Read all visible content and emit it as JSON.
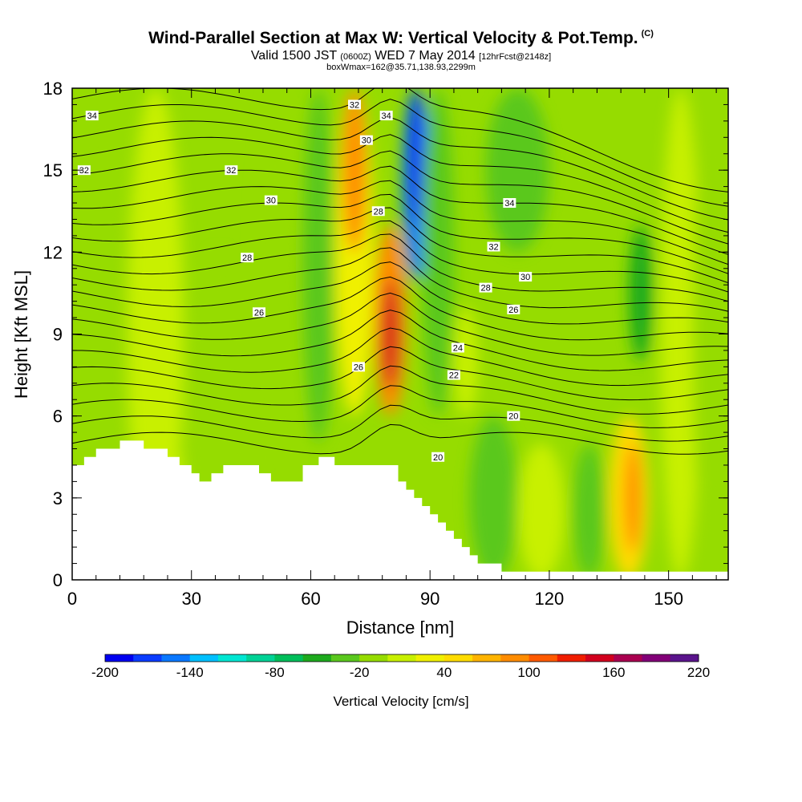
{
  "header": {
    "title": "Wind-Parallel Section at Max W: Vertical Velocity & Pot.Temp.",
    "copyright_mark": "(C)",
    "subtitle_valid": "Valid 1500 JST",
    "subtitle_utc": "(0600Z)",
    "subtitle_date": "WED 7 May 2014",
    "subtitle_fcst": "[12hrFcst@2148z]",
    "subtitle_box": "boxWmax=162@35.71,138.93,2299m"
  },
  "chart_data": {
    "type": "heatmap",
    "title": "Wind-Parallel Section at Max W: Vertical Velocity & Pot.Temp.",
    "xlabel": "Distance [nm]",
    "ylabel": "Height [Kft MSL]",
    "xlim": [
      0,
      165
    ],
    "ylim": [
      0,
      18
    ],
    "x_ticks": [
      0,
      30,
      60,
      90,
      120,
      150
    ],
    "y_ticks": [
      0,
      3,
      6,
      9,
      12,
      15,
      18
    ],
    "colorbar": {
      "label": "Vertical Velocity [cm/s]",
      "tick_labels": [
        "-200",
        "-140",
        "-80",
        "-20",
        "40",
        "100",
        "160",
        "220"
      ],
      "min": -200,
      "max": 240,
      "colors": [
        "#0000f0",
        "#0a3cff",
        "#0a78ff",
        "#00c0ff",
        "#00e6d2",
        "#00d296",
        "#00be5a",
        "#1eaa1e",
        "#5ac81e",
        "#96dc00",
        "#c8f000",
        "#f0f000",
        "#ffdc00",
        "#ffb400",
        "#ff8c00",
        "#ff5a00",
        "#f01e00",
        "#d2001e",
        "#aa0050",
        "#820078",
        "#5a148c"
      ]
    },
    "w_features": [
      {
        "kind": "updraft",
        "x_center": 80,
        "y_range": [
          6.5,
          13
        ],
        "peak_cm_s": 160
      },
      {
        "kind": "updraft",
        "x_center": 70,
        "y_range": [
          12,
          18
        ],
        "peak_cm_s": 100
      },
      {
        "kind": "downdraft",
        "x_center": 86,
        "y_range": [
          12,
          18
        ],
        "peak_cm_s": -200
      },
      {
        "kind": "downdraft",
        "x_center": 62,
        "y_range": [
          8,
          18
        ],
        "peak_cm_s": -40
      },
      {
        "kind": "downdraft",
        "x_center": 143,
        "y_range": [
          9,
          13
        ],
        "peak_cm_s": -40
      },
      {
        "kind": "updraft",
        "x_center": 140,
        "y_range": [
          1,
          6
        ],
        "peak_cm_s": 100
      }
    ],
    "terrain_height_kft": [
      [
        0,
        4.2
      ],
      [
        3,
        4.5
      ],
      [
        6,
        4.8
      ],
      [
        12,
        5.1
      ],
      [
        18,
        4.8
      ],
      [
        24,
        4.5
      ],
      [
        27,
        4.2
      ],
      [
        30,
        3.9
      ],
      [
        32,
        3.6
      ],
      [
        35,
        3.9
      ],
      [
        38,
        4.2
      ],
      [
        44,
        4.2
      ],
      [
        47,
        3.9
      ],
      [
        50,
        3.6
      ],
      [
        54,
        3.6
      ],
      [
        58,
        4.2
      ],
      [
        62,
        4.5
      ],
      [
        66,
        4.2
      ],
      [
        70,
        4.2
      ],
      [
        80,
        4.2
      ],
      [
        82,
        3.6
      ],
      [
        84,
        3.3
      ],
      [
        86,
        3.0
      ],
      [
        88,
        2.7
      ],
      [
        90,
        2.4
      ],
      [
        92,
        2.1
      ],
      [
        94,
        1.8
      ],
      [
        96,
        1.5
      ],
      [
        98,
        1.2
      ],
      [
        100,
        0.9
      ],
      [
        102,
        0.6
      ],
      [
        108,
        0.3
      ],
      [
        165,
        0.3
      ]
    ],
    "theta_contour_labels": [
      {
        "text": "34",
        "x": 5,
        "y": 17.0
      },
      {
        "text": "32",
        "x": 3,
        "y": 15.0
      },
      {
        "text": "32",
        "x": 40,
        "y": 15.0
      },
      {
        "text": "30",
        "x": 50,
        "y": 13.9
      },
      {
        "text": "28",
        "x": 44,
        "y": 11.8
      },
      {
        "text": "26",
        "x": 47,
        "y": 9.8
      },
      {
        "text": "32",
        "x": 71,
        "y": 17.4
      },
      {
        "text": "34",
        "x": 79,
        "y": 17.0
      },
      {
        "text": "30",
        "x": 74,
        "y": 16.1
      },
      {
        "text": "28",
        "x": 77,
        "y": 13.5
      },
      {
        "text": "26",
        "x": 72,
        "y": 7.8
      },
      {
        "text": "34",
        "x": 110,
        "y": 13.8
      },
      {
        "text": "32",
        "x": 106,
        "y": 12.2
      },
      {
        "text": "30",
        "x": 114,
        "y": 11.1
      },
      {
        "text": "28",
        "x": 104,
        "y": 10.7
      },
      {
        "text": "26",
        "x": 111,
        "y": 9.9
      },
      {
        "text": "24",
        "x": 97,
        "y": 8.5
      },
      {
        "text": "22",
        "x": 96,
        "y": 7.5
      },
      {
        "text": "20",
        "x": 111,
        "y": 6.0
      },
      {
        "text": "20",
        "x": 92,
        "y": 4.5
      }
    ],
    "theta_range_C": [
      20,
      34
    ],
    "theta_interval_C": 1
  }
}
